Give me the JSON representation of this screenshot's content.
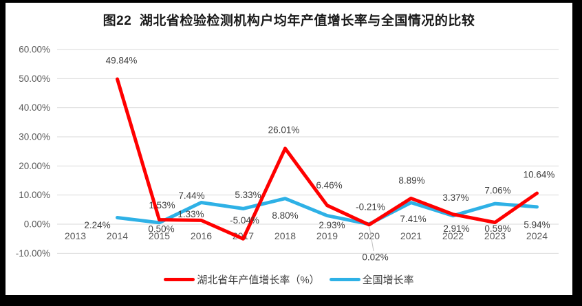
{
  "frame": {
    "background": "#000000",
    "panel_background": "#FFFFFF"
  },
  "chart_data": {
    "type": "line",
    "title": "图22  湖北省检验检测机构户均年产值增长率与全国情况的比较",
    "categories": [
      "2013",
      "2014",
      "2015",
      "2016",
      "2017",
      "2018",
      "2019",
      "2020",
      "2021",
      "2022",
      "2023",
      "2024"
    ],
    "series": [
      {
        "name": "湖北省年产值增长率（%）",
        "color": "#FF0000",
        "values": [
          null,
          49.84,
          1.53,
          1.33,
          -5.04,
          26.01,
          6.46,
          -0.21,
          8.89,
          3.37,
          0.59,
          10.64
        ],
        "labels": [
          "",
          "49.84%",
          "1.53%",
          "1.33%",
          "-5.04%",
          "26.01%",
          "6.46%",
          "-0.21%",
          "8.89%",
          "3.37%",
          "0.59%",
          "10.64%"
        ]
      },
      {
        "name": "全国增长率",
        "color": "#2EB1E6",
        "values": [
          null,
          2.24,
          0.5,
          7.44,
          5.33,
          8.8,
          2.93,
          0.02,
          7.41,
          2.91,
          7.06,
          5.94
        ],
        "labels": [
          "",
          "2.24%",
          "0.50%",
          "7.44%",
          "5.33%",
          "8.80%",
          "2.93%",
          "0.02%",
          "7.41%",
          "2.91%",
          "7.06%",
          "5.94%"
        ]
      }
    ],
    "y_axis": {
      "min": -10,
      "max": 60,
      "step": 10,
      "tick_labels": [
        "60.00%",
        "50.00%",
        "40.00%",
        "30.00%",
        "20.00%",
        "10.00%",
        "0.00%",
        "-10.00%"
      ]
    },
    "x_axis": {
      "label_color": "#595959"
    },
    "grid": true,
    "data_labels": true,
    "legend_position": "bottom",
    "colors": {
      "grid": "#D9D9D9",
      "axis_text": "#595959",
      "label_text": "#3F3F3F",
      "title_text": "#1A1A1A",
      "leader_line": "#BFBFBF"
    }
  }
}
